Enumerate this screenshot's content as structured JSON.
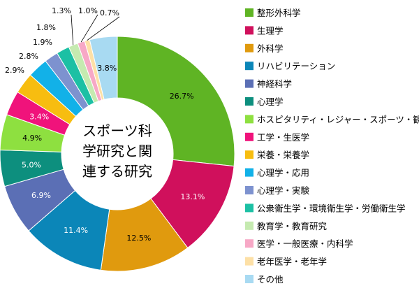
{
  "chart_data": {
    "type": "pie",
    "donut": true,
    "center_label_lines": [
      "スポーツ科",
      "学研究と関",
      "連する研究"
    ],
    "legend_placement": "right",
    "slices": [
      {
        "label": "整形外科学",
        "value": 26.7,
        "display": "26.7%",
        "color": "#5fb424"
      },
      {
        "label": "生理学",
        "value": 13.1,
        "display": "13.1%",
        "color": "#d0105c"
      },
      {
        "label": "外科学",
        "value": 12.5,
        "display": "12.5%",
        "color": "#e09a0e"
      },
      {
        "label": "リハビリテーション",
        "value": 11.4,
        "display": "11.4%",
        "color": "#0b86b8"
      },
      {
        "label": "神経科学",
        "value": 6.9,
        "display": "6.9%",
        "color": "#5b6fb5"
      },
      {
        "label": "心理学",
        "value": 5.0,
        "display": "5.0%",
        "color": "#0d8f7e"
      },
      {
        "label": "ホスピタリティ・レジャー・スポーツ・観光",
        "value": 4.9,
        "display": "4.9%",
        "color": "#8ee040"
      },
      {
        "label": "工学・生医学",
        "value": 3.4,
        "display": "3.4%",
        "color": "#f0137b"
      },
      {
        "label": "栄養・栄養学",
        "value": 2.9,
        "display": "2.9%",
        "color": "#f7bd10"
      },
      {
        "label": "心理学・応用",
        "value": 2.8,
        "display": "2.8%",
        "color": "#12b1e8"
      },
      {
        "label": "心理学・実験",
        "value": 1.9,
        "display": "1.9%",
        "color": "#7d92cf"
      },
      {
        "label": "公衆衛生学・環境衛生学・労働衛生学",
        "value": 1.8,
        "display": "1.8%",
        "color": "#1cc0a4"
      },
      {
        "label": "教育学・教育研究",
        "value": 1.3,
        "display": "1.3%",
        "color": "#c5eab0"
      },
      {
        "label": "医学・一般医療・内科学",
        "value": 1.0,
        "display": "1.0%",
        "color": "#f7a8c6"
      },
      {
        "label": "老年医学・老年学",
        "value": 0.7,
        "display": "0.7%",
        "color": "#fde0a6"
      },
      {
        "label": "その他",
        "value": 3.8,
        "display": "3.8%",
        "color": "#a8daf2"
      }
    ]
  }
}
